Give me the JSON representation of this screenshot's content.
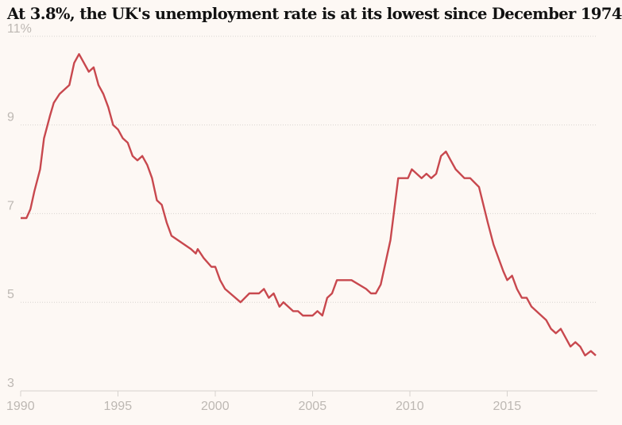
{
  "chart_data": {
    "type": "line",
    "title": "At 3.8%, the UK's unemployment rate is at its lowest since December 1974",
    "xlabel": "",
    "ylabel": "",
    "xlim": [
      1990,
      2019.6
    ],
    "ylim": [
      3,
      11
    ],
    "x_ticks": [
      "1990",
      "1995",
      "2000",
      "2005",
      "2010",
      "2015"
    ],
    "y_ticks": [
      "3",
      "5",
      "7",
      "9",
      "11%"
    ],
    "grid": true,
    "line_color": "#c8484e",
    "series": [
      {
        "x": [
          1990.0,
          1990.3,
          1990.5,
          1990.7,
          1991.0,
          1991.2,
          1991.5,
          1991.7,
          1992.0,
          1992.5,
          1992.75,
          1993.0,
          1993.5,
          1993.75,
          1994.0,
          1994.25,
          1994.5,
          1994.75,
          1995.0,
          1995.25,
          1995.5,
          1995.75,
          1996.0,
          1996.25,
          1996.5,
          1996.75,
          1997.0,
          1997.25,
          1997.5,
          1997.75,
          1998.75,
          1999.0,
          1999.1,
          1999.4,
          1999.8,
          2000.0,
          2000.25,
          2000.5,
          2001.3,
          2001.75,
          2002.25,
          2002.5,
          2002.75,
          2003.0,
          2003.3,
          2003.5,
          2004.0,
          2004.25,
          2004.5,
          2005.0,
          2005.25,
          2005.5,
          2005.75,
          2006.0,
          2006.25,
          2007.0,
          2007.75,
          2008.0,
          2008.25,
          2008.5,
          2008.75,
          2009.0,
          2009.4,
          2009.9,
          2010.1,
          2010.6,
          2010.85,
          2011.1,
          2011.35,
          2011.6,
          2011.85,
          2012.1,
          2012.35,
          2012.8,
          2013.1,
          2013.55,
          2014.0,
          2014.3,
          2014.8,
          2015.0,
          2015.25,
          2015.5,
          2015.75,
          2016.0,
          2016.25,
          2017.0,
          2017.25,
          2017.5,
          2017.75,
          2018.25,
          2018.5,
          2018.75,
          2019.0,
          2019.3,
          2019.55
        ],
        "y": [
          6.9,
          6.9,
          7.1,
          7.5,
          8.0,
          8.7,
          9.2,
          9.5,
          9.7,
          9.9,
          10.4,
          10.6,
          10.2,
          10.3,
          9.9,
          9.7,
          9.4,
          9.0,
          8.9,
          8.7,
          8.6,
          8.3,
          8.2,
          8.3,
          8.1,
          7.8,
          7.3,
          7.2,
          6.8,
          6.5,
          6.2,
          6.1,
          6.2,
          6.0,
          5.8,
          5.8,
          5.5,
          5.3,
          5.0,
          5.2,
          5.2,
          5.3,
          5.1,
          5.2,
          4.9,
          5.0,
          4.8,
          4.8,
          4.7,
          4.7,
          4.8,
          4.7,
          5.1,
          5.2,
          5.5,
          5.5,
          5.3,
          5.2,
          5.2,
          5.4,
          5.9,
          6.4,
          7.8,
          7.8,
          8.0,
          7.8,
          7.9,
          7.8,
          7.9,
          8.3,
          8.4,
          8.2,
          8.0,
          7.8,
          7.8,
          7.6,
          6.8,
          6.3,
          5.7,
          5.5,
          5.6,
          5.3,
          5.1,
          5.1,
          4.9,
          4.6,
          4.4,
          4.3,
          4.4,
          4.0,
          4.1,
          4.0,
          3.8,
          3.9,
          3.8
        ]
      }
    ]
  }
}
